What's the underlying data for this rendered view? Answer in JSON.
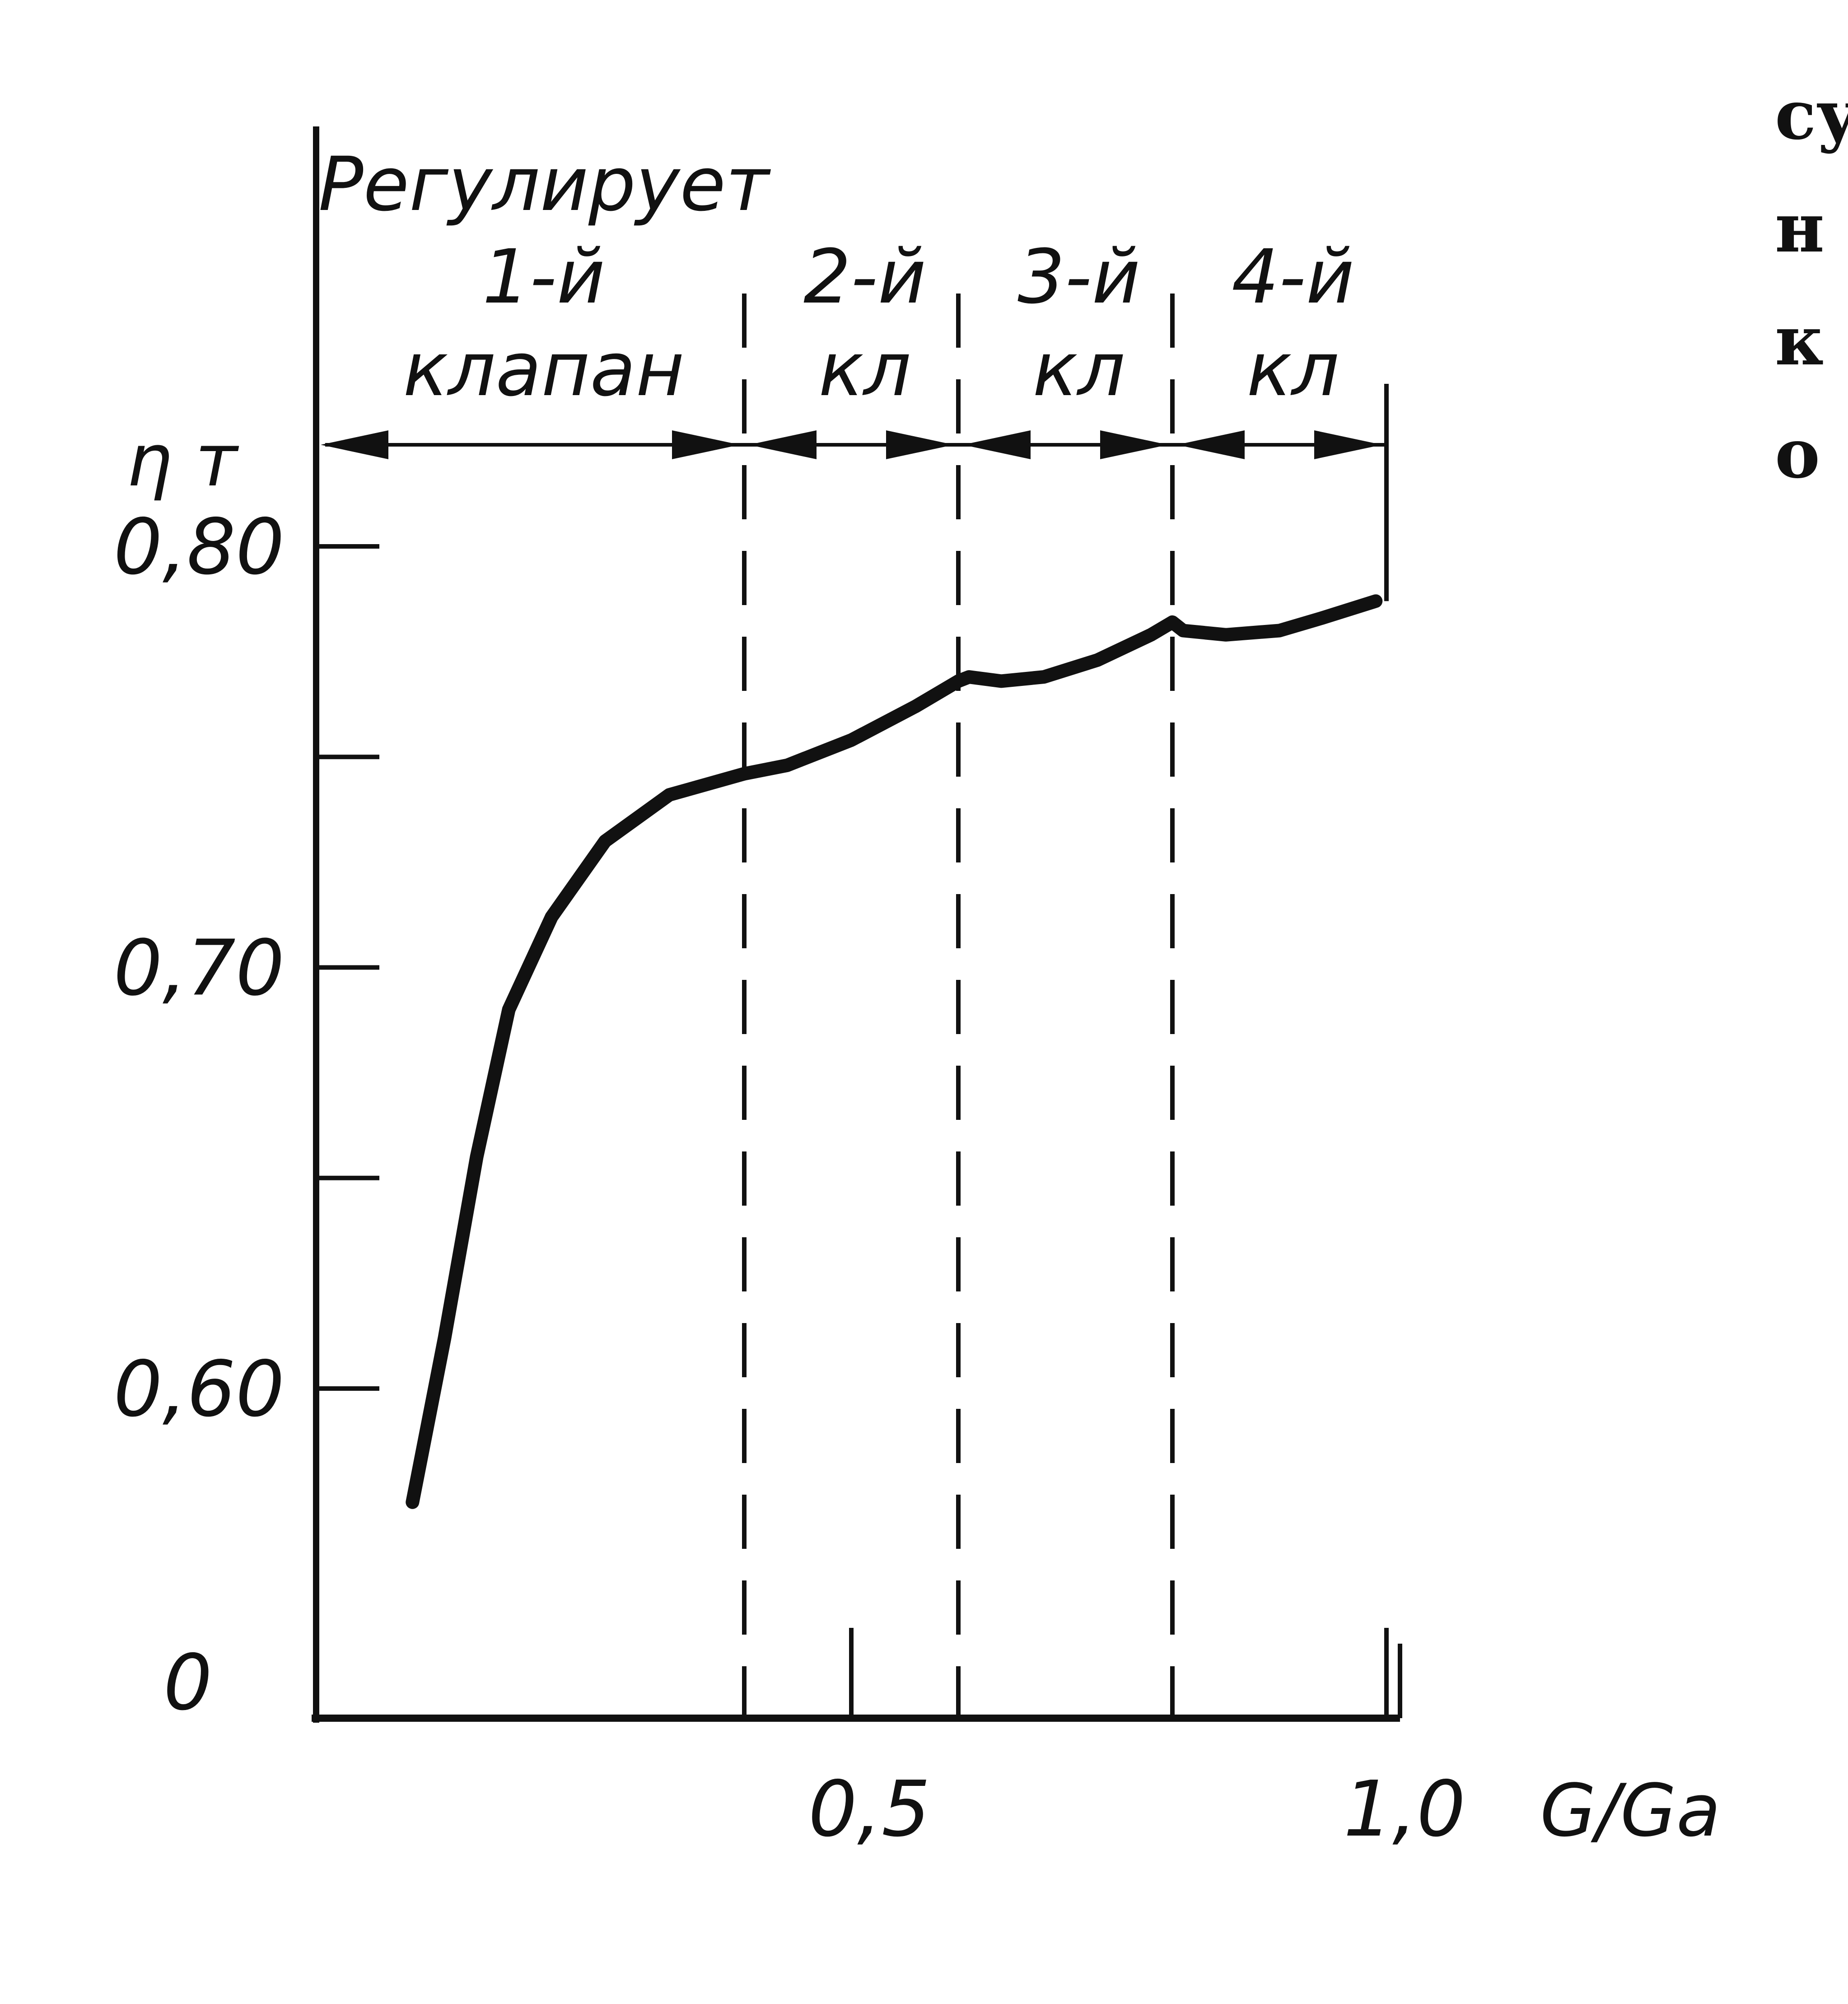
{
  "chart_data": {
    "type": "line",
    "title": "",
    "xlabel": "G/Ga",
    "ylabel": "η т",
    "xlim": [
      0,
      1.0
    ],
    "ylim_labels": [
      "0",
      "0,60",
      "0,70",
      "0,80"
    ],
    "x_tick_labels": [
      {
        "value": 0.5,
        "label": "0,5"
      },
      {
        "value": 1.0,
        "label": "1,0"
      }
    ],
    "y_ticks": [
      {
        "value": 0.6,
        "label": "0,60"
      },
      {
        "value": 0.65,
        "label": ""
      },
      {
        "value": 0.7,
        "label": "0,70"
      },
      {
        "value": 0.75,
        "label": ""
      },
      {
        "value": 0.8,
        "label": "0,80"
      }
    ],
    "y_origin_label": "0",
    "axis_break": true,
    "valve_boundaries": [
      0.4,
      0.6,
      0.8,
      1.0
    ],
    "regions": [
      {
        "from": 0.0,
        "to": 0.4,
        "label_lines": [
          "Регулирует",
          "1-й",
          "клапан"
        ]
      },
      {
        "from": 0.4,
        "to": 0.6,
        "label_lines": [
          "2-й",
          "кл"
        ]
      },
      {
        "from": 0.6,
        "to": 0.8,
        "label_lines": [
          "3-й",
          "кл"
        ]
      },
      {
        "from": 0.8,
        "to": 1.0,
        "label_lines": [
          "4-й",
          "кл"
        ]
      }
    ],
    "series": [
      {
        "points": [
          [
            0.09,
            0.573
          ],
          [
            0.12,
            0.612
          ],
          [
            0.15,
            0.655
          ],
          [
            0.18,
            0.69
          ],
          [
            0.22,
            0.712
          ],
          [
            0.27,
            0.73
          ],
          [
            0.33,
            0.741
          ],
          [
            0.4,
            0.746
          ],
          [
            0.44,
            0.748
          ],
          [
            0.5,
            0.754
          ],
          [
            0.56,
            0.762
          ],
          [
            0.6,
            0.768
          ],
          [
            0.61,
            0.769
          ],
          [
            0.64,
            0.768
          ],
          [
            0.68,
            0.769
          ],
          [
            0.73,
            0.773
          ],
          [
            0.78,
            0.779
          ],
          [
            0.8,
            0.782
          ],
          [
            0.81,
            0.78
          ],
          [
            0.85,
            0.779
          ],
          [
            0.9,
            0.78
          ],
          [
            0.94,
            0.783
          ],
          [
            0.99,
            0.787
          ]
        ],
        "segment_breaks": [
          0.4,
          0.6,
          0.8
        ]
      }
    ],
    "grid": false,
    "legend": "none"
  },
  "side_text": [
    "су",
    "н",
    "к",
    "о"
  ]
}
